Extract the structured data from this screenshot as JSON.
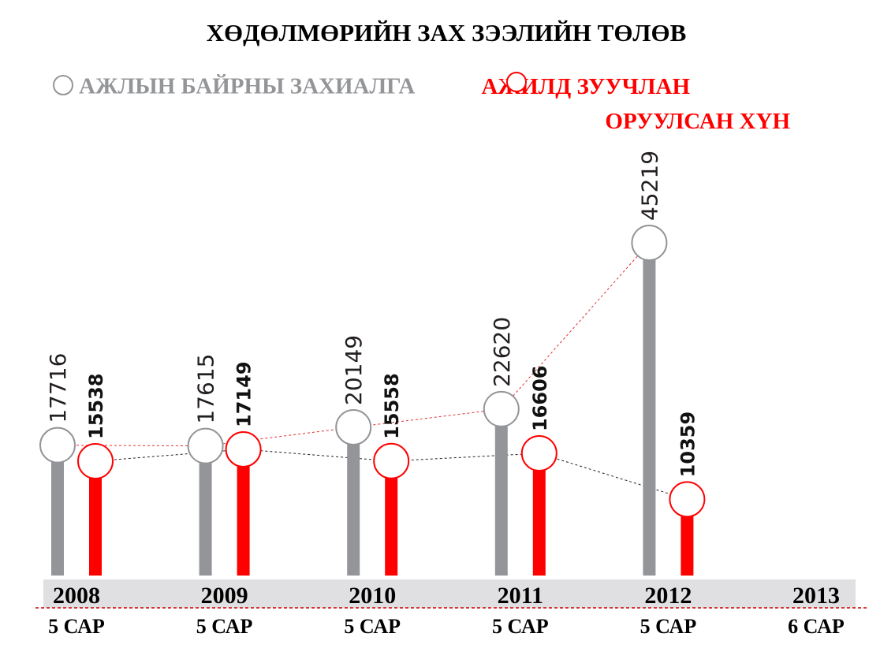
{
  "chart_data": {
    "type": "lollipop",
    "title": "ХӨДӨЛМӨРИЙН ЗАХ ЗЭЭЛИЙН ТӨЛӨВ",
    "categories": [
      "2008",
      "2009",
      "2010",
      "2011",
      "2012",
      "2013"
    ],
    "periods": [
      "5 САР",
      "5 САР",
      "5 САР",
      "5 САР",
      "5 САР",
      "6 САР"
    ],
    "series": [
      {
        "name": "АЖЛЫН БАЙРНЫ ЗАХИАЛГА",
        "color": "#939598",
        "values": [
          17716,
          17615,
          20149,
          22620,
          45219,
          null
        ]
      },
      {
        "name": "АЖИЛД ЗУУЧЛАН ОРУУЛСАН ХҮН",
        "color": "#ff0000",
        "values": [
          15538,
          17149,
          15558,
          16606,
          10359,
          null
        ]
      }
    ]
  }
}
